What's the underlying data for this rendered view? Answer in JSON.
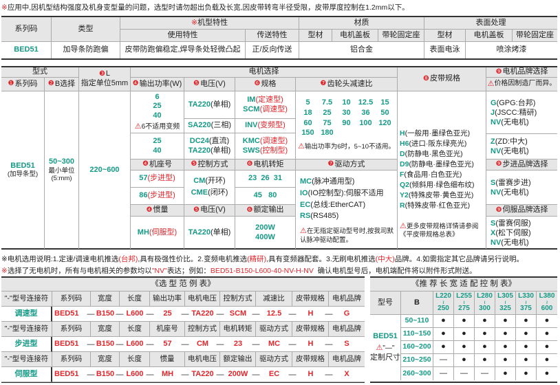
{
  "note_top": {
    "mark": "※",
    "text": "应用中,因机型结构强度及机身变型量的问题，选型时请勿超出负载及长宽,因皮带转弯半径受限，皮带厚度控制在1.2mm以下。"
  },
  "spec_table": {
    "h_series": "系列码",
    "h_type": "类型",
    "h_feature_mark": "※",
    "h_feature": "机型特性",
    "h_material": "材质",
    "h_surface": "表面处理",
    "h_use": "使用特性",
    "h_transfer": "传送特性",
    "h_mat_profile": "型材",
    "h_mat_cover": "电机盖板",
    "h_mat_pulley": "带轮固定座",
    "h_sur_profile": "型材",
    "h_sur_cover": "电机盖板",
    "h_sur_pulley": "带轮固定座",
    "series": "BED51",
    "type": "加导条防跑偏",
    "use": "皮带防跑偏稳定,焊导条处轻微凸起",
    "transfer": "正/反向传送",
    "material": "铝合金",
    "sur_profile": "表面电泳",
    "sur_other": "喷涂烤漆"
  },
  "sel": {
    "h_form": "型式",
    "h_motor": "电机选择",
    "h_belt": "皮带规格",
    "h_brand": "电机品牌选择",
    "brand_warn": "价格因制造厂而异。",
    "h_series": "系列码",
    "h_b": "B选择",
    "h_l1": "L",
    "h_l2": "指定单位5mm",
    "h_power": "输出功率(W)",
    "h_volt": "电压(V)",
    "h_spec": "规格",
    "h_gear": "齿轮头减速比",
    "n1": "❶",
    "n2": "❷",
    "n3": "❸",
    "n4": "❹",
    "n5": "❺",
    "n6": "❻",
    "n7": "❼",
    "n8": "❽",
    "n9": "❾",
    "series": "BED51",
    "series_sub": "(加导条型)",
    "b": "50~300",
    "b_sub1": "最小单位",
    "b_sub2": "(5:mm)",
    "l": "220~600",
    "power1": [
      "6",
      "25",
      "40"
    ],
    "power1_warn": "6不适用变频",
    "power2": [
      "25",
      "40"
    ],
    "volt1": {
      "code": "TA220",
      "desc": "(单相)"
    },
    "volt2": {
      "code": "SA220",
      "desc": "(三相)"
    },
    "volt3": {
      "code": "DC24",
      "desc": "(直流)"
    },
    "volt4": {
      "code": "TA220",
      "desc": "(单相)"
    },
    "spec1": {
      "code": "IM",
      "desc": "(定速型)"
    },
    "spec2": {
      "code": "SCM",
      "desc": "(调速型)"
    },
    "spec3": {
      "code": "INV",
      "desc": "(变频型)"
    },
    "spec4": {
      "code": "KMC",
      "desc": "(调速型)"
    },
    "spec5": {
      "code": "SWS",
      "desc": "(控制型)"
    },
    "gear_ratios": [
      "5",
      "7.5",
      "10",
      "12.5",
      "15",
      "18",
      "25",
      "30",
      "36",
      "50",
      "60",
      "75",
      "90",
      "100",
      "120",
      "150",
      "180"
    ],
    "gear_warn": "输出功率为6时，5~10不适用。",
    "h_frame": "机座号",
    "h_control": "控制方式",
    "h_torque": "电机转矩",
    "h_drive": "驱动方式",
    "frame1": {
      "code": "57",
      "desc": "(步进型)"
    },
    "frame2": {
      "code": "86",
      "desc": "(步进型)"
    },
    "control1": {
      "code": "CM",
      "desc": "(开环)"
    },
    "control2": {
      "code": "CME",
      "desc": "(闭环)"
    },
    "torque1": "23  26  31",
    "torque2": "45   80",
    "drive": [
      {
        "code": "MC",
        "desc": "(脉冲通用型)"
      },
      {
        "code": "IO",
        "desc": "(IO控制型):伺服不适用"
      },
      {
        "code": "EC",
        "desc": "(总线:EtherCAT)"
      },
      {
        "code": "RS",
        "desc": "(RS485)"
      }
    ],
    "drive_warn": "在无指定驱动型号时,按我司默认脉冲驱动配置。",
    "h_inertia": "惯量",
    "h_volt2": "电压(V)",
    "h_rated": "额定输出",
    "inertia": {
      "code": "MH",
      "desc": "(伺服型)"
    },
    "volt5": {
      "code": "TA220",
      "desc": "(单相)"
    },
    "rated": [
      "200W",
      "400W"
    ],
    "belts": [
      {
        "code": "H",
        "desc": "(一般用·墨绿色亚光)"
      },
      {
        "code": "H6",
        "desc": "(进口·阪东绿亮光)"
      },
      {
        "code": "D",
        "desc": "(防静电·黑色亚光)"
      },
      {
        "code": "D9",
        "desc": "(防静电·墨绿色亚光)"
      },
      {
        "code": "F",
        "desc": "(食品用·白色亚光)"
      },
      {
        "code": "Q2",
        "desc": "(倾斜用·绿色细布纹)"
      },
      {
        "code": "Y2",
        "desc": "(特殊皮带·黄色亚光)"
      },
      {
        "code": "R",
        "desc": "(特殊皮带·红色亚光)"
      }
    ],
    "belt_warn": "更多皮带规格详情请参阅《平皮带规格总表》",
    "brand1": [
      {
        "code": "G",
        "desc": "(GPG:台邦)"
      },
      {
        "code": "J",
        "desc": "(JSCC:精研)"
      },
      {
        "code": "NV",
        "desc": "(无电机)"
      }
    ],
    "brand2": [
      {
        "code": "Z",
        "desc": "(ZD:中大)"
      },
      {
        "code": "NV",
        "desc": "(无电机)"
      }
    ],
    "h_step_brand": "步进品牌选择",
    "step_brand": [
      {
        "code": "S",
        "desc": "(雷赛步进)"
      },
      {
        "code": "NV",
        "desc": "(无电机)"
      }
    ],
    "h_servo_brand": "伺服品牌选择",
    "servo_brand": [
      {
        "code": "S",
        "desc": "(雷赛伺服)"
      },
      {
        "code": "X",
        "desc": "(松下伺服)"
      },
      {
        "code": "NV",
        "desc": "(无电机)"
      }
    ]
  },
  "notes": {
    "n1a": "※电机选用说明:1.定速/调速电机推选",
    "n1b": "(台邦)",
    "n1c": ",具有极强性价比。2.变频电机推选",
    "n1d": "(精研)",
    "n1e": ",具有变频器配套。3.无刷电机推选",
    "n1f": "(中大)",
    "n1g": "品牌。4.如需指定其它品牌请另行说明。",
    "n2a": "※",
    "n2b": "选择了无电机时，所有与电机相关的参数均以",
    "n2c": "\"NV\"",
    "n2d": "表达；例如：",
    "n2e": "BED51-B150-L600-40-NV-H-NV",
    "n2f": "  确认电机型号后，电机端配件将以附件形式附送。"
  },
  "example": {
    "title": "《选 型 范 例 表》",
    "rows": [
      {
        "header": [
          "\"-\"型号连接符",
          "系列码",
          "宽度",
          "长度",
          "输出功率",
          "电机电压",
          "控制方式",
          "减速比",
          "皮带规格",
          "电机品牌"
        ],
        "label": "调速型",
        "values": [
          "BED51",
          "B150",
          "L600",
          "25",
          "TA220",
          "SCM",
          "12.5",
          "H",
          "G"
        ]
      },
      {
        "header": [
          "\"-\"型号连接符",
          "系列码",
          "宽度",
          "长度",
          "机座号",
          "控制方式",
          "电机转矩",
          "驱动方式",
          "皮带规格",
          "电机品牌"
        ],
        "label": "步进型",
        "values": [
          "BED51",
          "B150",
          "L600",
          "57",
          "CM",
          "23",
          "MC",
          "H",
          "S"
        ]
      },
      {
        "header": [
          "\"-\"型号连接符",
          "系列码",
          "宽度",
          "长度",
          "惯量",
          "电机电压",
          "额定输出",
          "驱动方式",
          "皮带规格",
          "电机品牌"
        ],
        "label": "伺服型",
        "values": [
          "BED51",
          "B150",
          "L600",
          "MH",
          "TA220",
          "200W",
          "EC",
          "H",
          "X"
        ]
      }
    ],
    "dash": "—"
  },
  "recommend": {
    "title": "《推 荐 长 宽 适 配 控 制 表》",
    "h_model": "型号",
    "h_b": "B",
    "cols": [
      [
        "L220",
        "250"
      ],
      [
        "L255",
        "275"
      ],
      [
        "L280",
        "300"
      ],
      [
        "L305",
        "325"
      ],
      [
        "L330",
        "375"
      ],
      [
        "L380",
        "600"
      ]
    ],
    "tilde": "≀",
    "model": "BED51",
    "model_warn": "\"—\"",
    "model_sub": "定制尺寸",
    "rows": [
      {
        "b": "50~110",
        "cells": [
          "●",
          "●",
          "●",
          "●",
          "●",
          "●"
        ]
      },
      {
        "b": "110~150",
        "cells": [
          "●",
          "●",
          "●",
          "●",
          "●",
          "●"
        ]
      },
      {
        "b": "160~200",
        "cells": [
          "●",
          "●",
          "●",
          "●",
          "●",
          "●"
        ]
      },
      {
        "b": "210~250",
        "cells": [
          "—",
          "●",
          "●",
          "●",
          "●",
          "●"
        ]
      },
      {
        "b": "260~300",
        "cells": [
          "—",
          "—",
          "—",
          "●",
          "●",
          "●"
        ]
      }
    ]
  },
  "colors": {
    "accent_green": "#159a86",
    "accent_red": "#e0262b",
    "header_bg": "#e6e6e6"
  }
}
